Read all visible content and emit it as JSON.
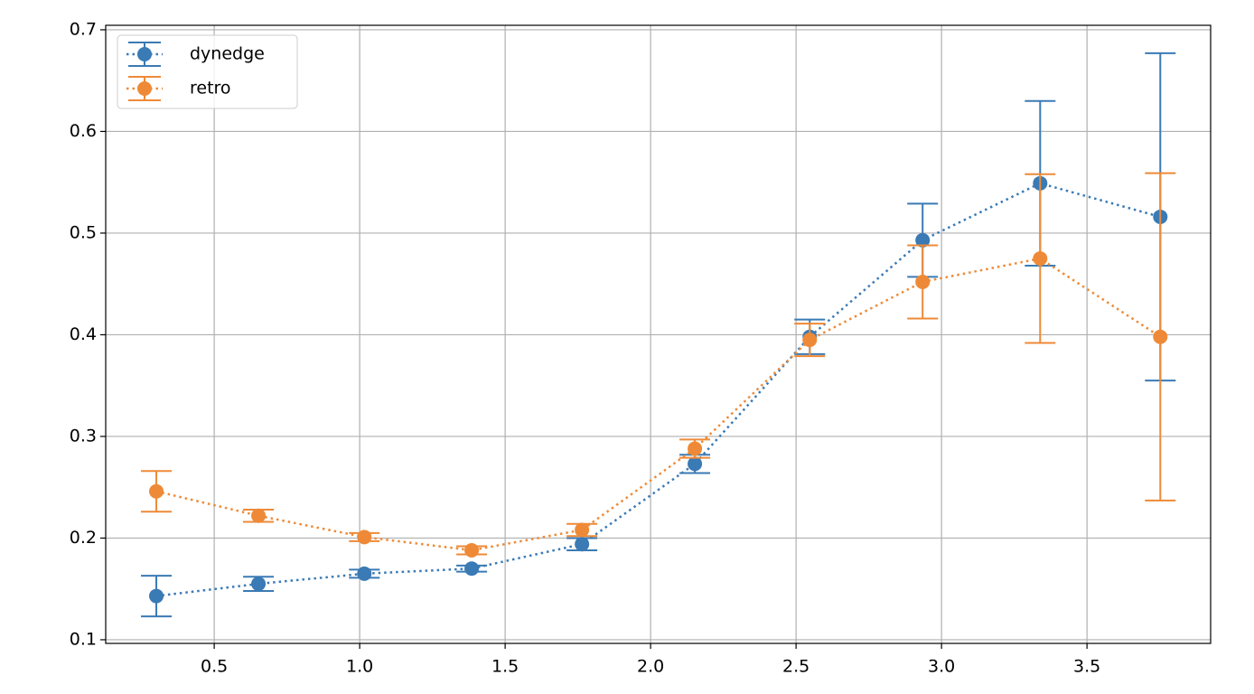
{
  "chart_data": {
    "type": "errorbar",
    "x": [
      0.301,
      0.652,
      1.016,
      1.385,
      1.764,
      2.152,
      2.547,
      2.935,
      3.339,
      3.752
    ],
    "series": [
      {
        "name": "dynedge",
        "color": "#3a7ab5",
        "values": [
          0.143,
          0.155,
          0.165,
          0.17,
          0.194,
          0.273,
          0.398,
          0.493,
          0.549,
          0.516
        ],
        "errors": [
          0.02,
          0.007,
          0.004,
          0.003,
          0.006,
          0.009,
          0.017,
          0.036,
          0.081,
          0.161
        ]
      },
      {
        "name": "retro",
        "color": "#ee8a37",
        "values": [
          0.246,
          0.222,
          0.201,
          0.188,
          0.208,
          0.288,
          0.395,
          0.452,
          0.475,
          0.398
        ],
        "errors": [
          0.02,
          0.006,
          0.004,
          0.004,
          0.006,
          0.009,
          0.016,
          0.036,
          0.083,
          0.161
        ]
      }
    ],
    "xlim": [
      0.127,
      3.925
    ],
    "xticks": [
      0.5,
      {
        "value": 1,
        "label": "1.0"
      },
      1.5,
      {
        "value": 2,
        "label": "2.0"
      },
      2.5,
      {
        "value": 3,
        "label": "3.0"
      },
      3.5
    ],
    "ylim": [
      0.0964,
      0.7044
    ],
    "yticks": [
      0.1,
      0.2,
      0.3,
      0.4,
      0.5,
      0.6,
      0.7
    ],
    "grid": true,
    "legend": "upper left",
    "linestyle": "dotted"
  }
}
